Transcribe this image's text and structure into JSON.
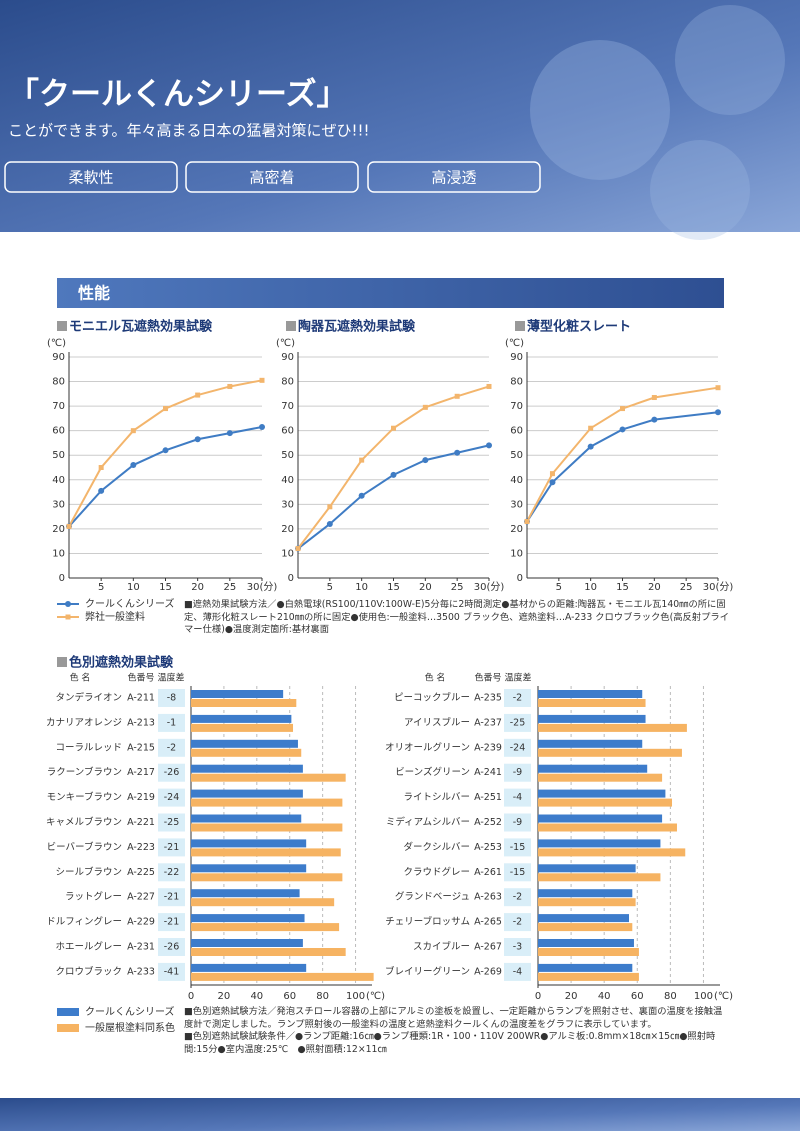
{
  "header": {
    "title": "「クールくんシリーズ」",
    "subtitle": "ことができます。年々高まる日本の猛暑対策にぜひ!!!",
    "badges": [
      "柔軟性",
      "高密着",
      "高浸透"
    ]
  },
  "section_title": "性能",
  "chart_data": [
    {
      "type": "line",
      "title": "モニエル瓦遮熱効果試験",
      "y_unit": "(℃)",
      "x": [
        0,
        5,
        10,
        15,
        20,
        25,
        30
      ],
      "series": [
        {
          "name": "クールくんシリーズ",
          "color": "#3f7cc4",
          "marker": "circle",
          "values": [
            21,
            35.5,
            46,
            52,
            56.5,
            59,
            61.5
          ]
        },
        {
          "name": "弊社一般塗料",
          "color": "#f3b56c",
          "marker": "square",
          "values": [
            21,
            45,
            60,
            69,
            74.5,
            78,
            80.5
          ]
        }
      ],
      "xlim": [
        0,
        30
      ],
      "ylim": [
        0,
        90
      ],
      "xticks": [
        5,
        10,
        15,
        20,
        25,
        {
          "value": 30,
          "label": "30(分)"
        }
      ],
      "yticks": [
        0,
        10,
        20,
        30,
        40,
        50,
        60,
        70,
        80,
        90
      ],
      "grid": true
    },
    {
      "type": "line",
      "title": "陶器瓦遮熱効果試験",
      "y_unit": "(℃)",
      "x": [
        0,
        5,
        10,
        15,
        20,
        25,
        30
      ],
      "series": [
        {
          "color": "#3f7cc4",
          "marker": "circle",
          "values": [
            12,
            22,
            33.5,
            42,
            48,
            51,
            54
          ]
        },
        {
          "color": "#f3b56c",
          "marker": "square",
          "values": [
            12,
            29,
            48,
            61,
            69.5,
            74,
            78
          ]
        }
      ],
      "xlim": [
        0,
        30
      ],
      "ylim": [
        0,
        90
      ],
      "xticks": [
        5,
        10,
        15,
        20,
        25,
        {
          "value": 30,
          "label": "30(分)"
        }
      ],
      "yticks": [
        0,
        10,
        20,
        30,
        40,
        50,
        60,
        70,
        80,
        90
      ],
      "grid": true
    },
    {
      "type": "line",
      "title": "薄型化粧スレート",
      "y_unit": "(℃)",
      "x": [
        0,
        4,
        10,
        15,
        20,
        30
      ],
      "series": [
        {
          "color": "#3f7cc4",
          "marker": "circle",
          "values": [
            23,
            39,
            53.5,
            60.5,
            64.5,
            67.5
          ]
        },
        {
          "color": "#f3b56c",
          "marker": "square",
          "values": [
            23,
            42.5,
            61,
            69,
            73.5,
            77.5
          ]
        }
      ],
      "xlim": [
        0,
        30
      ],
      "ylim": [
        0,
        90
      ],
      "xticks": [
        5,
        10,
        15,
        20,
        25,
        {
          "value": 30,
          "label": "30(分)"
        }
      ],
      "yticks": [
        0,
        10,
        20,
        30,
        40,
        50,
        60,
        70,
        80,
        90
      ],
      "grid": true
    },
    {
      "type": "bar",
      "column_headers": [
        "色 名",
        "色番号",
        "温度差"
      ],
      "x_unit": "(℃)",
      "categories": [
        "タンデライオン",
        "カナリアオレンジ",
        "コーラルレッド",
        "ラクーンブラウン",
        "モンキーブラウン",
        "キャメルブラウン",
        "ビーバーブラウン",
        "シールブラウン",
        "ラットグレー",
        "ドルフィングレー",
        "ホエールグレー",
        "クロウブラック"
      ],
      "codes": [
        "A-211",
        "A-213",
        "A-215",
        "A-217",
        "A-219",
        "A-221",
        "A-223",
        "A-225",
        "A-227",
        "A-229",
        "A-231",
        "A-233"
      ],
      "differences": [
        -8,
        -1,
        -2,
        -26,
        -24,
        -25,
        -21,
        -22,
        -21,
        -21,
        -26,
        -41
      ],
      "series": [
        {
          "name": "クールくんシリーズ",
          "color": "#3d7ccb",
          "values": [
            56,
            61,
            65,
            68,
            68,
            67,
            70,
            70,
            66,
            69,
            68,
            70
          ]
        },
        {
          "name": "一般屋根塗料同系色",
          "color": "#f6b362",
          "values": [
            64,
            62,
            67,
            94,
            92,
            92,
            91,
            92,
            87,
            90,
            94,
            111
          ]
        }
      ],
      "xlim": [
        0,
        110
      ],
      "xticks": [
        0,
        20,
        40,
        60,
        80,
        100
      ],
      "grid": true
    },
    {
      "type": "bar",
      "column_headers": [
        "色 名",
        "色番号",
        "温度差"
      ],
      "x_unit": "(℃)",
      "categories": [
        "ピーコックブルー",
        "アイリスブルー",
        "オリオールグリーン",
        "ビーンズグリーン",
        "ライトシルバー",
        "ミディアムシルバー",
        "ダークシルバー",
        "クラウドグレー",
        "グランドベージュ",
        "チェリーブロッサム",
        "スカイブルー",
        "ブレイリーグリーン"
      ],
      "codes": [
        "A-235",
        "A-237",
        "A-239",
        "A-241",
        "A-251",
        "A-252",
        "A-253",
        "A-261",
        "A-263",
        "A-265",
        "A-267",
        "A-269"
      ],
      "differences": [
        -2,
        -25,
        -24,
        -9,
        -4,
        -9,
        -15,
        -15,
        -2,
        -2,
        -3,
        -4
      ],
      "series": [
        {
          "color": "#3d7ccb",
          "values": [
            63,
            65,
            63,
            66,
            77,
            75,
            74,
            59,
            57,
            55,
            58,
            57
          ]
        },
        {
          "color": "#f6b362",
          "values": [
            65,
            90,
            87,
            75,
            81,
            84,
            89,
            74,
            59,
            57,
            61,
            61
          ]
        }
      ],
      "xlim": [
        0,
        110
      ],
      "xticks": [
        0,
        20,
        40,
        60,
        80,
        100
      ],
      "grid": true
    }
  ],
  "line_note": "■遮熱効果試験方法／●白熱電球(RS100/110V:100W-E)5分毎に2時間測定●基材からの距離:陶器瓦・モニエル瓦140㎜の所に固定、薄形化粧スレート210㎜の所に固定●使用色:一般塗料…3500 ブラック色、遮熱塗料…A-233 クロウブラック色(高反射プライマー仕様)●温度測定箇所:基材裏面",
  "bar_section_title": "色別遮熱効果試験",
  "bar_note": [
    "■色別遮熱試験方法／発泡スチロール容器の上部にアルミの塗板を設置し、一定距離からランプを照射させ、裏面の温度を接触温度計で測定しました。ランプ照射後の一般塗料の温度と遮熱塗料クールくんの温度差をグラフに表示しています。",
    "■色別遮熱試験試験条件／●ランプ距離:16㎝●ランプ種類:1R・100・110V 200WR●アルミ板:0.8mm×18㎝×15㎝●照射時間:15分●室内温度:25℃　●照射面積:12×11㎝"
  ]
}
